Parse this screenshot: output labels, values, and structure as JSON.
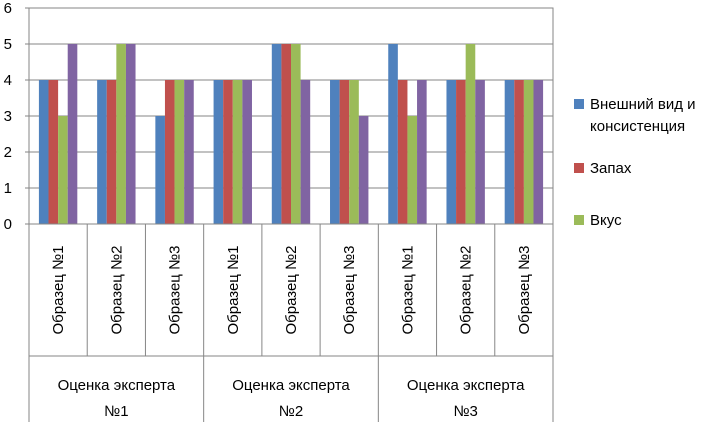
{
  "chart_data": {
    "type": "bar",
    "y_ticks": [
      "0",
      "1",
      "2",
      "3",
      "4",
      "5",
      "6"
    ],
    "ylim": [
      0,
      6
    ],
    "grid": true,
    "legend_position": "right",
    "groups": [
      {
        "label": "Оценка эксперта №1",
        "line1": "Оценка эксперта",
        "line2": "№1",
        "categories": [
          "Образец №1",
          "Образец №2",
          "Образец №3"
        ]
      },
      {
        "label": "Оценка эксперта №2",
        "line1": "Оценка эксперта",
        "line2": "№2",
        "categories": [
          "Образец №1",
          "Образец №2",
          "Образец №3"
        ]
      },
      {
        "label": "Оценка эксперта №3",
        "line1": "Оценка эксперта",
        "line2": "№3",
        "categories": [
          "Образец №1",
          "Образец №2",
          "Образец №3"
        ]
      }
    ],
    "series": [
      {
        "name": "Внешний вид и консистенция",
        "color": "#4F81BD",
        "values": [
          4,
          4,
          3,
          4,
          5,
          4,
          5,
          4,
          4
        ]
      },
      {
        "name": "Запах",
        "color": "#C0504D",
        "values": [
          4,
          4,
          4,
          4,
          5,
          4,
          4,
          4,
          4
        ]
      },
      {
        "name": "Вкус",
        "color": "#9BBB59",
        "values": [
          3,
          5,
          4,
          4,
          5,
          4,
          3,
          5,
          4
        ]
      },
      {
        "name": "",
        "color": "#8064A2",
        "values": [
          5,
          5,
          4,
          4,
          4,
          3,
          4,
          4,
          4
        ]
      }
    ]
  },
  "legend": {
    "item1_line1": "Внешний вид и",
    "item1_line2": "консистенция",
    "item2": "Запах",
    "item3": "Вкус"
  }
}
